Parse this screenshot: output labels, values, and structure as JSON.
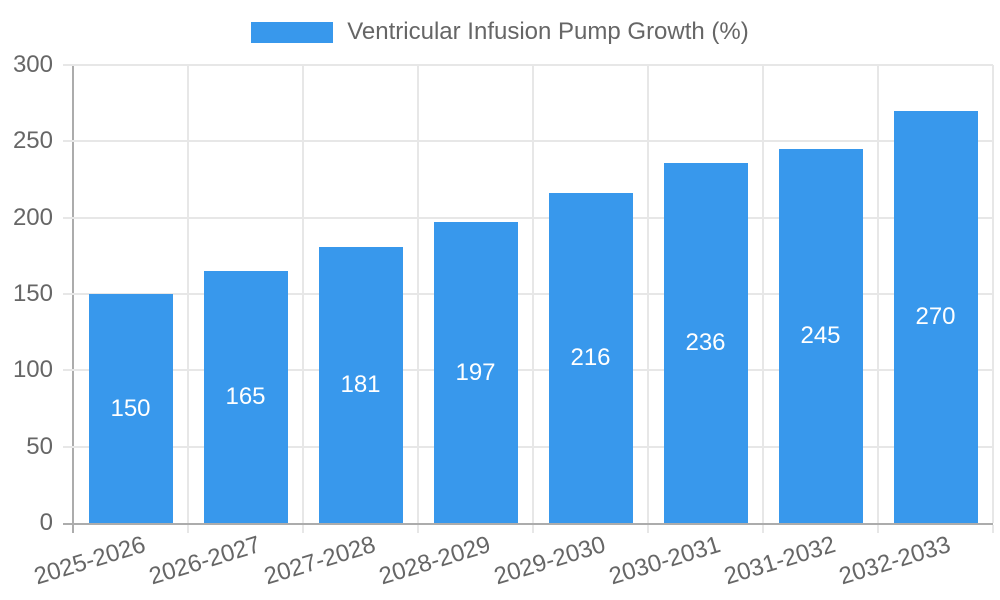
{
  "legend": {
    "label": "Ventricular Infusion Pump Growth (%)"
  },
  "chart_data": {
    "type": "bar",
    "title": "Ventricular Infusion Pump Growth (%)",
    "xlabel": "",
    "ylabel": "",
    "categories": [
      "2025-2026",
      "2026-2027",
      "2027-2028",
      "2028-2029",
      "2029-2030",
      "2030-2031",
      "2031-2032",
      "2032-2033"
    ],
    "values": [
      150,
      165,
      181,
      197,
      216,
      236,
      245,
      270
    ],
    "series": [
      {
        "name": "Ventricular Infusion Pump Growth (%)",
        "values": [
          150,
          165,
          181,
          197,
          216,
          236,
          245,
          270
        ]
      }
    ],
    "ylim": [
      0,
      300
    ],
    "yticks": [
      0,
      50,
      100,
      150,
      200,
      250,
      300
    ],
    "grid": true,
    "legend_position": "top",
    "x_label_rotation_deg": -17,
    "colors": {
      "bar": "#3898EC",
      "grid": "#E7E7E7",
      "axis": "#ACACAC",
      "tick_text": "#666666",
      "data_label": "#FFFFFF",
      "background": "#FFFFFF"
    }
  }
}
